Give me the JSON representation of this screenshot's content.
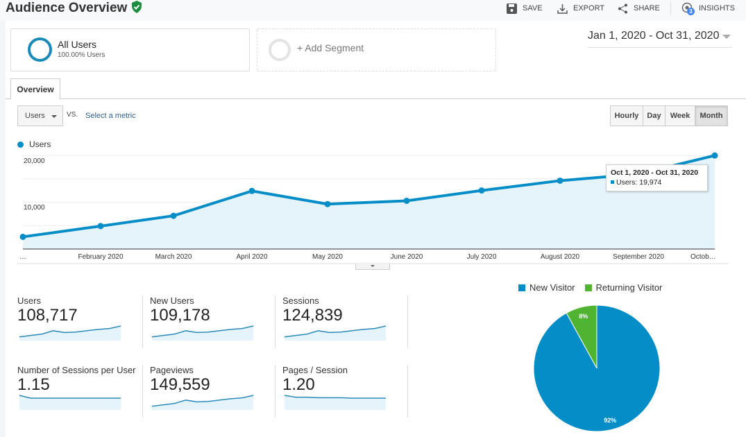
{
  "header": {
    "title": "Audience Overview",
    "save": "SAVE",
    "export": "EXPORT",
    "share": "SHARE",
    "insights": "INSIGHTS",
    "insights_badge": "3"
  },
  "segments": {
    "primary_name": "All Users",
    "primary_sub": "100.00% Users",
    "add": "+ Add Segment"
  },
  "date_range": "Jan 1, 2020 - Oct 31, 2020",
  "tabs": [
    "Overview"
  ],
  "controls": {
    "metric": "Users",
    "vs": "VS.",
    "select_metric": "Select a metric",
    "granularity": [
      "Hourly",
      "Day",
      "Week",
      "Month"
    ],
    "active": "Month"
  },
  "chart_data": {
    "type": "area",
    "legend": "Users",
    "color": "#058dc7",
    "y_ticks": [
      "10,000",
      "20,000"
    ],
    "ylim": [
      0,
      20000
    ],
    "x_labels": [
      "…",
      "February 2020",
      "March 2020",
      "April 2020",
      "May 2020",
      "June 2020",
      "July 2020",
      "August 2020",
      "September 2020",
      "Octob…"
    ],
    "values": [
      2600,
      4900,
      7100,
      12400,
      9600,
      10300,
      12500,
      14600,
      16000,
      19974
    ],
    "tooltip": {
      "title": "Oct 1, 2020 - Oct 31, 2020",
      "text": "Users: 19,974"
    }
  },
  "metrics": [
    {
      "label": "Users",
      "value": "108,717",
      "trend": [
        2600,
        4900,
        7100,
        12400,
        9600,
        10300,
        12500,
        14600,
        16000,
        19974
      ]
    },
    {
      "label": "New Users",
      "value": "109,178",
      "trend": [
        2600,
        4900,
        7100,
        12400,
        9600,
        10300,
        12500,
        14600,
        16000,
        19974
      ]
    },
    {
      "label": "Sessions",
      "value": "124,839",
      "trend": [
        2600,
        4900,
        7100,
        12400,
        9600,
        10300,
        12500,
        14600,
        16000,
        19974
      ]
    },
    {
      "label": "Number of Sessions per User",
      "value": "1.15",
      "trend": [
        1.16,
        1.15,
        1.15,
        1.15,
        1.15,
        1.15,
        1.15,
        1.15,
        1.15,
        1.15
      ]
    },
    {
      "label": "Pageviews",
      "value": "149,559",
      "trend": [
        2600,
        4900,
        7100,
        12400,
        9600,
        10300,
        12500,
        14600,
        16000,
        19974
      ]
    },
    {
      "label": "Pages / Session",
      "value": "1.20",
      "trend": [
        1.3,
        1.22,
        1.22,
        1.2,
        1.2,
        1.2,
        1.18,
        1.18,
        1.18,
        1.18
      ]
    }
  ],
  "pie": {
    "legend": [
      "New Visitor",
      "Returning Visitor"
    ],
    "values": [
      92,
      8
    ],
    "labels": [
      "92%",
      "8%"
    ],
    "colors": [
      "#058dc7",
      "#50b432"
    ]
  }
}
